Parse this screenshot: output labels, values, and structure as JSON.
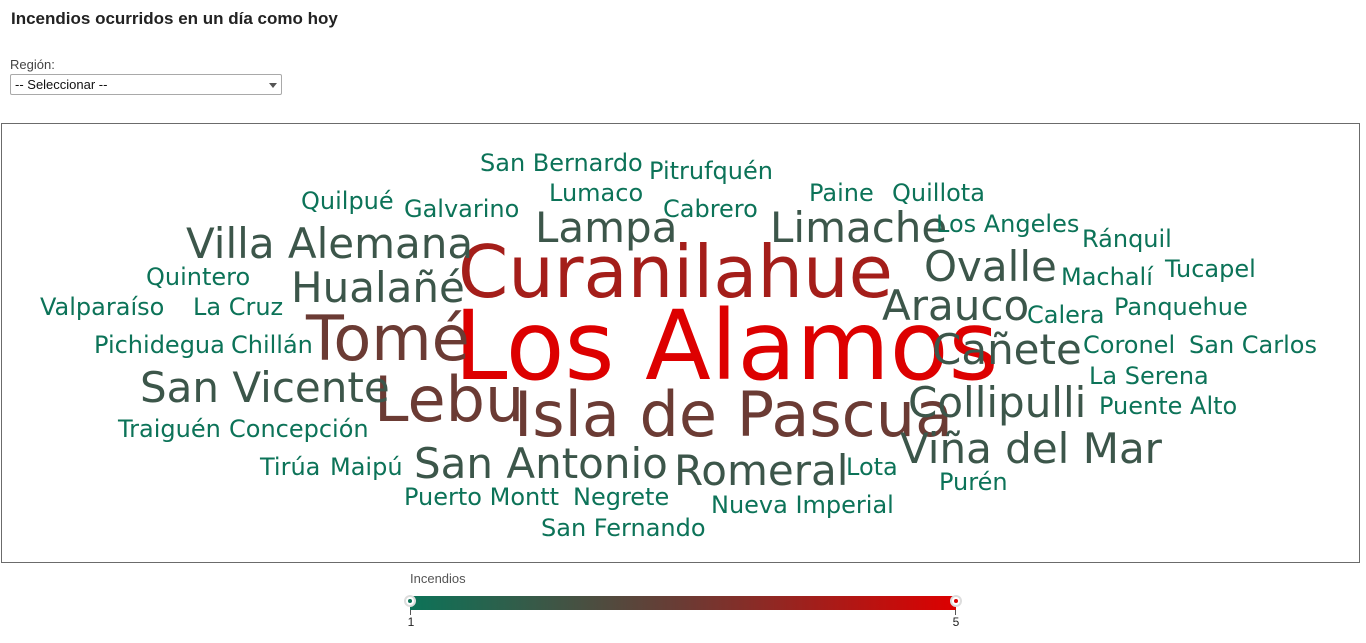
{
  "page": {
    "title": "Incendios ocurridos en un día como hoy"
  },
  "filter": {
    "label": "Región:",
    "selected": "-- Seleccionar --"
  },
  "legend": {
    "title": "Incendios",
    "min_label": "1",
    "max_label": "5",
    "min_color": "#0c7358",
    "max_color": "#dd0000"
  },
  "chart_data": {
    "type": "wordcloud",
    "value_name": "Incendios",
    "range": [
      1,
      5
    ],
    "words": [
      {
        "text": "Los Alamos",
        "value": 5
      },
      {
        "text": "Curanilahue",
        "value": 4
      },
      {
        "text": "Tomé",
        "value": 3
      },
      {
        "text": "Lebu",
        "value": 3
      },
      {
        "text": "Isla de Pascua",
        "value": 3
      },
      {
        "text": "Villa Alemana",
        "value": 2
      },
      {
        "text": "Hualañé",
        "value": 2
      },
      {
        "text": "Lampa",
        "value": 2
      },
      {
        "text": "Limache",
        "value": 2
      },
      {
        "text": "Ovalle",
        "value": 2
      },
      {
        "text": "Arauco",
        "value": 2
      },
      {
        "text": "Cañete",
        "value": 2
      },
      {
        "text": "San Vicente",
        "value": 2
      },
      {
        "text": "Collipulli",
        "value": 2
      },
      {
        "text": "Viña del Mar",
        "value": 2
      },
      {
        "text": "San Antonio",
        "value": 2
      },
      {
        "text": "Romeral",
        "value": 2
      },
      {
        "text": "San Bernardo",
        "value": 1
      },
      {
        "text": "Pitrufquén",
        "value": 1
      },
      {
        "text": "Lumaco",
        "value": 1
      },
      {
        "text": "Paine",
        "value": 1
      },
      {
        "text": "Quillota",
        "value": 1
      },
      {
        "text": "Quilpué",
        "value": 1
      },
      {
        "text": "Galvarino",
        "value": 1
      },
      {
        "text": "Cabrero",
        "value": 1
      },
      {
        "text": "Los Angeles",
        "value": 1
      },
      {
        "text": "Ránquil",
        "value": 1
      },
      {
        "text": "Quintero",
        "value": 1
      },
      {
        "text": "Machalí",
        "value": 1
      },
      {
        "text": "Tucapel",
        "value": 1
      },
      {
        "text": "Valparaíso",
        "value": 1
      },
      {
        "text": "La Cruz",
        "value": 1
      },
      {
        "text": "Calera",
        "value": 1
      },
      {
        "text": "Panquehue",
        "value": 1
      },
      {
        "text": "Pichidegua",
        "value": 1
      },
      {
        "text": "Chillán",
        "value": 1
      },
      {
        "text": "Coronel",
        "value": 1
      },
      {
        "text": "San Carlos",
        "value": 1
      },
      {
        "text": "La Serena",
        "value": 1
      },
      {
        "text": "Puente Alto",
        "value": 1
      },
      {
        "text": "Traiguén",
        "value": 1
      },
      {
        "text": "Concepción",
        "value": 1
      },
      {
        "text": "Tirúa",
        "value": 1
      },
      {
        "text": "Maipú",
        "value": 1
      },
      {
        "text": "Lota",
        "value": 1
      },
      {
        "text": "Purén",
        "value": 1
      },
      {
        "text": "Puerto Montt",
        "value": 1
      },
      {
        "text": "Negrete",
        "value": 1
      },
      {
        "text": "Nueva Imperial",
        "value": 1
      },
      {
        "text": "San Fernando",
        "value": 1
      }
    ]
  }
}
